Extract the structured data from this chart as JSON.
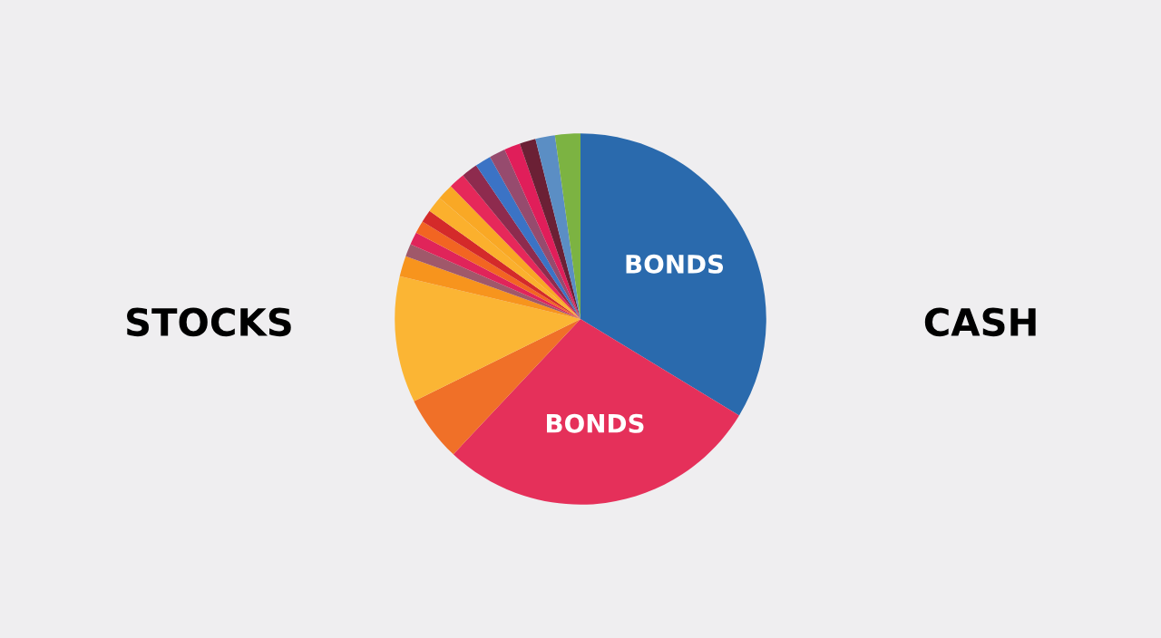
{
  "chart_data": {
    "type": "pie",
    "categories": [
      "BONDS",
      "BONDS",
      null,
      null,
      null,
      null,
      null,
      null,
      null,
      null,
      null,
      null,
      null,
      null,
      null,
      null,
      null,
      null,
      null
    ],
    "values": [
      33.7,
      28.3,
      5.7,
      11.0,
      1.8,
      1.1,
      1.1,
      1.1,
      1.1,
      1.4,
      1.4,
      1.4,
      1.4,
      1.4,
      1.4,
      1.4,
      1.4,
      1.7,
      2.2
    ],
    "colors": [
      "#2a6aad",
      "#e5305a",
      "#f07028",
      "#fbb534",
      "#f7941d",
      "#a0586a",
      "#e0245a",
      "#f26522",
      "#d42a2a",
      "#fbb02d",
      "#f9a825",
      "#e6285a",
      "#8e2b4e",
      "#3b73c5",
      "#964b6e",
      "#e01e5a",
      "#6b2035",
      "#5b8ec4",
      "#7cb342"
    ],
    "annotations": [
      "STOCKS",
      "CASH"
    ]
  }
}
